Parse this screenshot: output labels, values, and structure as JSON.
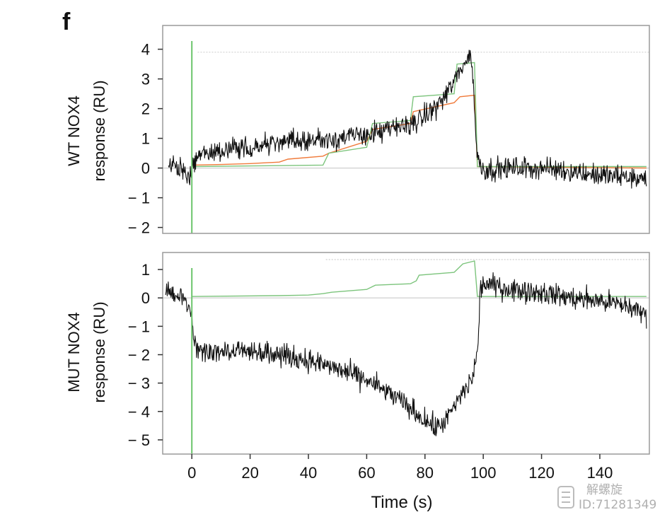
{
  "panel_label": "f",
  "colors": {
    "trace": "#111111",
    "fit_orange": "#f07a3a",
    "fit_green": "#7cc47c",
    "injection_marker": "#6cc46c",
    "frame": "#9a9a9a",
    "reference": "#cfcfcf"
  },
  "watermark": {
    "icon": "watermark-logo-icon",
    "name": "解螺旋",
    "id": "ID:71281349"
  },
  "chart_data": [
    {
      "type": "line",
      "title": "",
      "ylabel_lines": [
        "WT NOX4",
        "response (RU)"
      ],
      "xlabel": "",
      "xlim": [
        -10,
        157
      ],
      "ylim": [
        -2.2,
        4.8
      ],
      "yticks": [
        4,
        3,
        2,
        1,
        0,
        -1,
        -2
      ],
      "ytick_labels": [
        "4",
        "3",
        "2",
        "1",
        "0",
        "− 1",
        "− 2"
      ],
      "series": [
        {
          "role": "measured",
          "color": "#111111",
          "noise": 0.28,
          "x": [
            -8,
            -4,
            -1,
            0,
            1,
            5,
            10,
            20,
            30,
            40,
            48,
            55,
            60,
            65,
            70,
            75,
            78,
            82,
            86,
            90,
            93,
            96,
            97,
            98,
            100,
            110,
            120,
            130,
            140,
            150,
            156
          ],
          "y": [
            0.1,
            0.0,
            -0.4,
            0.0,
            0.3,
            0.5,
            0.6,
            0.7,
            0.85,
            0.95,
            1.0,
            1.05,
            1.15,
            1.2,
            1.35,
            1.5,
            1.6,
            1.9,
            2.3,
            2.9,
            3.5,
            3.8,
            2.0,
            0.3,
            -0.05,
            0.0,
            0.0,
            -0.1,
            -0.25,
            -0.3,
            -0.4
          ]
        },
        {
          "role": "fit",
          "color": "#f07a3a",
          "x": [
            0,
            10,
            20,
            30,
            33,
            45,
            47,
            60,
            62,
            75,
            76,
            90,
            92,
            97,
            98,
            156
          ],
          "y": [
            0.1,
            0.12,
            0.15,
            0.2,
            0.3,
            0.4,
            0.5,
            0.9,
            1.3,
            1.5,
            1.9,
            2.2,
            2.4,
            2.45,
            0.05,
            0.0
          ]
        },
        {
          "role": "fit",
          "color": "#7cc47c",
          "x": [
            0,
            30,
            45,
            47,
            60,
            62,
            75,
            76,
            90,
            91,
            97,
            98,
            156
          ],
          "y": [
            0.05,
            0.08,
            0.1,
            0.5,
            0.7,
            1.5,
            1.6,
            2.4,
            2.5,
            3.5,
            3.55,
            0.05,
            0.05
          ]
        }
      ],
      "reference_lines": [
        {
          "y": 0,
          "from_x": -10,
          "to_x": 157
        },
        {
          "y": 3.9,
          "from_x": 2,
          "to_x": 157
        }
      ],
      "injection_x": 0
    },
    {
      "type": "line",
      "title": "",
      "ylabel_lines": [
        "MUT NOX4",
        "response (RU)"
      ],
      "xlabel": "Time (s)",
      "xlim": [
        -10,
        157
      ],
      "ylim": [
        -5.5,
        1.6
      ],
      "xticks": [
        0,
        20,
        40,
        60,
        80,
        100,
        120,
        140
      ],
      "xtick_labels": [
        "0",
        "20",
        "40",
        "60",
        "80",
        "100",
        "120",
        "140"
      ],
      "yticks": [
        1,
        0,
        -1,
        -2,
        -3,
        -4,
        -5
      ],
      "ytick_labels": [
        "1",
        "0",
        "− 1",
        "− 2",
        "− 3",
        "− 4",
        "− 5"
      ],
      "series": [
        {
          "role": "measured",
          "color": "#111111",
          "noise": 0.3,
          "x": [
            -9,
            -5,
            -1,
            0,
            1,
            5,
            10,
            20,
            30,
            40,
            50,
            60,
            65,
            70,
            75,
            80,
            84,
            88,
            92,
            96,
            98,
            99,
            100,
            110,
            120,
            130,
            140,
            150,
            156
          ],
          "y": [
            0.35,
            0.1,
            -0.2,
            -0.8,
            -1.7,
            -1.9,
            -1.9,
            -1.8,
            -2.0,
            -2.2,
            -2.5,
            -2.9,
            -3.2,
            -3.5,
            -3.9,
            -4.3,
            -4.6,
            -4.2,
            -3.5,
            -2.9,
            -2.0,
            0.3,
            0.5,
            0.3,
            0.2,
            0.0,
            -0.1,
            -0.3,
            -0.6
          ]
        },
        {
          "role": "fit",
          "color": "#7cc47c",
          "x": [
            0,
            30,
            40,
            45,
            48,
            60,
            63,
            75,
            77,
            78,
            90,
            93,
            97,
            98,
            156
          ],
          "y": [
            0.05,
            0.08,
            0.1,
            0.15,
            0.2,
            0.3,
            0.45,
            0.5,
            0.6,
            0.8,
            0.9,
            1.2,
            1.3,
            0.05,
            0.05
          ]
        }
      ],
      "reference_lines": [
        {
          "y": 0,
          "from_x": -10,
          "to_x": 157
        },
        {
          "y": 1.35,
          "from_x": 46,
          "to_x": 157
        }
      ],
      "injection_x": 0
    }
  ]
}
